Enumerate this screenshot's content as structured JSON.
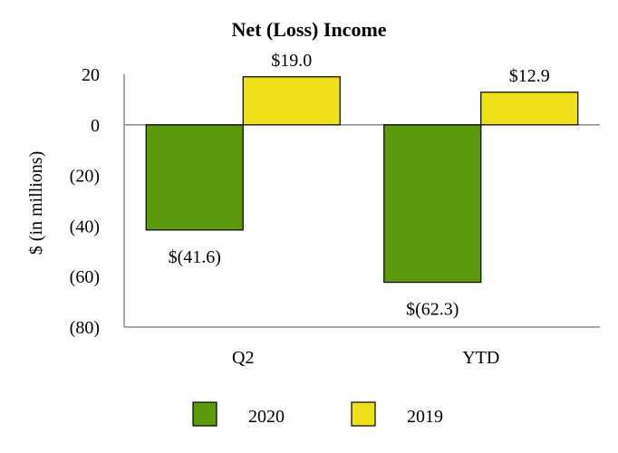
{
  "chart_data": {
    "type": "bar",
    "title": "Net (Loss) Income",
    "ylabel": "$ (in millions)",
    "xlabel": "",
    "categories": [
      "Q2",
      "YTD"
    ],
    "ylim": [
      -80,
      20
    ],
    "yticks": [
      20,
      0,
      -20,
      -40,
      -60,
      -80
    ],
    "ytick_labels": [
      "20",
      "0",
      "(20)",
      "(40)",
      "(60)",
      "(80)"
    ],
    "grid": false,
    "legend_position": "bottom",
    "series": [
      {
        "name": "2020",
        "color": "#5b9a0a",
        "values": [
          -41.6,
          -62.3
        ],
        "labels": [
          "$(41.6)",
          "$(62.3)"
        ]
      },
      {
        "name": "2019",
        "color": "#efe01a",
        "values": [
          19.0,
          12.9
        ],
        "labels": [
          "$19.0",
          "$12.9"
        ]
      }
    ]
  }
}
